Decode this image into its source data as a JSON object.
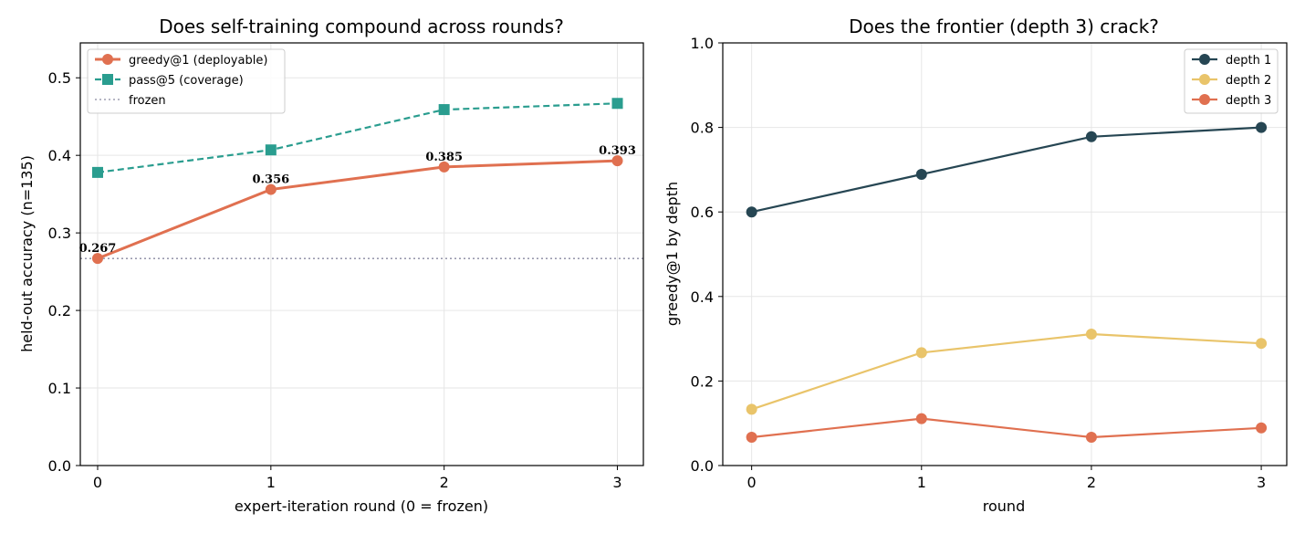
{
  "chart_data": [
    {
      "type": "line",
      "title": "Does self-training compound across rounds?",
      "xlabel": "expert-iteration round (0 = frozen)",
      "ylabel": "held-out accuracy (n=135)",
      "x": [
        0,
        1,
        2,
        3
      ],
      "xticks": [
        "0",
        "1",
        "2",
        "3"
      ],
      "xlim": [
        -0.1,
        3.15
      ],
      "ylim": [
        0.0,
        0.545
      ],
      "yticks": [
        "0.0",
        "0.1",
        "0.2",
        "0.3",
        "0.4",
        "0.5"
      ],
      "grid": true,
      "legend_position": "upper-left",
      "series": [
        {
          "name": "greedy@1 (deployable)",
          "values": [
            0.267,
            0.356,
            0.385,
            0.393
          ],
          "color": "#e07050",
          "marker": "circle",
          "linestyle": "solid",
          "data_labels": [
            "0.267",
            "0.356",
            "0.385",
            "0.393"
          ]
        },
        {
          "name": "pass@5 (coverage)",
          "values": [
            0.378,
            0.407,
            0.459,
            0.467
          ],
          "color": "#2a9d8f",
          "marker": "square",
          "linestyle": "dashed"
        }
      ],
      "reference_lines": [
        {
          "name": "frozen",
          "value": 0.267,
          "color": "#8a8aa0",
          "linestyle": "dotted"
        }
      ]
    },
    {
      "type": "line",
      "title": "Does the frontier (depth 3) crack?",
      "xlabel": "round",
      "ylabel": "greedy@1 by depth",
      "x": [
        0,
        1,
        2,
        3
      ],
      "xticks": [
        "0",
        "1",
        "2",
        "3"
      ],
      "xlim": [
        -0.17,
        3.15
      ],
      "ylim": [
        0.0,
        1.0
      ],
      "yticks": [
        "0.0",
        "0.2",
        "0.4",
        "0.6",
        "0.8",
        "1.0"
      ],
      "grid": true,
      "legend_position": "upper-right",
      "series": [
        {
          "name": "depth 1",
          "values": [
            0.6,
            0.689,
            0.778,
            0.8
          ],
          "color": "#264653",
          "marker": "circle",
          "linestyle": "solid"
        },
        {
          "name": "depth 2",
          "values": [
            0.133,
            0.267,
            0.311,
            0.289
          ],
          "color": "#e9c46a",
          "marker": "circle",
          "linestyle": "solid"
        },
        {
          "name": "depth 3",
          "values": [
            0.067,
            0.111,
            0.067,
            0.089
          ],
          "color": "#e07050",
          "marker": "circle",
          "linestyle": "solid"
        }
      ]
    }
  ]
}
